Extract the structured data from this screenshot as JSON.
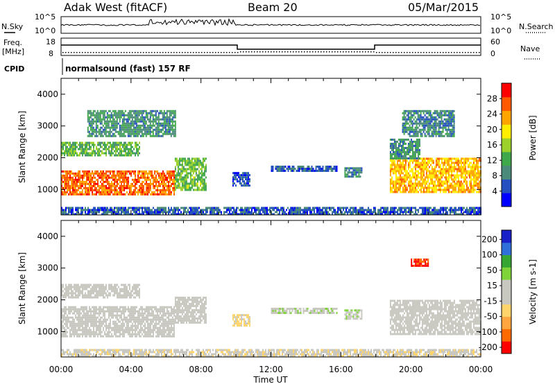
{
  "header": {
    "title": "Adak West (fitACF)",
    "beam": "Beam 20",
    "date": "05/Mar/2015"
  },
  "noise_panel": {
    "left_label": "N.Sky",
    "right_label": "N.Search",
    "left_ticks": [
      "10^5",
      "10^0"
    ],
    "right_ticks": [
      "10^5",
      "10^0"
    ]
  },
  "freq_panel": {
    "left_label_1": "Freq.",
    "left_label_2": "[MHz]",
    "right_label": "Nave",
    "left_ticks": [
      "18",
      "8"
    ],
    "right_ticks": [
      "60",
      "0"
    ]
  },
  "cpid": {
    "label": "CPID",
    "text": "normalsound (fast) 157 RF"
  },
  "colors": {
    "power": [
      "#0000ff",
      "#2550bf",
      "#4a8a7a",
      "#3fa84a",
      "#9bd12a",
      "#ffee00",
      "#ffa500",
      "#ff5a00",
      "#ff0000"
    ],
    "velocity": [
      "#ff0000",
      "#ff6a00",
      "#ffa640",
      "#ffd46a",
      "#c8c8c0",
      "#c8c8c0",
      "#7fd43a",
      "#36a632",
      "#2f6fd9",
      "#1a20c8"
    ]
  },
  "chart_data": [
    {
      "type": "heatmap",
      "name": "power",
      "ylabel": "Slant Range [km]",
      "ylim": [
        200,
        4500
      ],
      "yticks": [
        "1000",
        "2000",
        "3000",
        "4000"
      ],
      "xlim_hours": [
        0,
        24
      ],
      "colorbar": {
        "label": "Power [dB]",
        "ticks": [
          "4",
          "8",
          "12",
          "16",
          "20",
          "24",
          "28"
        ],
        "range": [
          0,
          32
        ]
      },
      "regions": [
        {
          "t": [
            0.0,
            6.5
          ],
          "r": [
            850,
            1600
          ],
          "value": 26
        },
        {
          "t": [
            6.5,
            8.3
          ],
          "r": [
            1000,
            2000
          ],
          "value": 14
        },
        {
          "t": [
            0.0,
            4.5
          ],
          "r": [
            2100,
            2500
          ],
          "value": 13
        },
        {
          "t": [
            1.5,
            6.5
          ],
          "r": [
            2700,
            3500
          ],
          "value": 10
        },
        {
          "t": [
            9.8,
            10.8
          ],
          "r": [
            1150,
            1550
          ],
          "value": 5
        },
        {
          "t": [
            12.0,
            15.8
          ],
          "r": [
            1600,
            1750
          ],
          "value": 6
        },
        {
          "t": [
            16.2,
            17.2
          ],
          "r": [
            1400,
            1700
          ],
          "value": 8
        },
        {
          "t": [
            18.8,
            24.0
          ],
          "r": [
            900,
            2000
          ],
          "value": 22
        },
        {
          "t": [
            18.8,
            20.5
          ],
          "r": [
            2000,
            2600
          ],
          "value": 10
        },
        {
          "t": [
            19.5,
            22.5
          ],
          "r": [
            2700,
            3500
          ],
          "value": 9
        },
        {
          "t": [
            0.0,
            24.0
          ],
          "r": [
            200,
            450
          ],
          "value": 6
        }
      ]
    },
    {
      "type": "heatmap",
      "name": "velocity",
      "ylabel": "Slant Range [km]",
      "ylim": [
        200,
        4500
      ],
      "yticks": [
        "1000",
        "2000",
        "3000",
        "4000"
      ],
      "xlabel": "Time UT",
      "xticks": [
        "00:00",
        "04:00",
        "08:00",
        "12:00",
        "16:00",
        "20:00",
        "00:00"
      ],
      "xlim_hours": [
        0,
        24
      ],
      "colorbar": {
        "label": "Velocity [m s-1]",
        "ticks": [
          "200",
          "100",
          "50",
          "15",
          "-15",
          "-50",
          "-100",
          "-200"
        ],
        "range": [
          -250,
          250
        ]
      },
      "regions": [
        {
          "t": [
            0.0,
            6.5
          ],
          "r": [
            850,
            1800
          ],
          "value": 0
        },
        {
          "t": [
            6.5,
            8.3
          ],
          "r": [
            1300,
            2100
          ],
          "value": 0
        },
        {
          "t": [
            0.0,
            4.5
          ],
          "r": [
            2100,
            2500
          ],
          "value": -5
        },
        {
          "t": [
            9.8,
            10.8
          ],
          "r": [
            1200,
            1550
          ],
          "value": -60
        },
        {
          "t": [
            12.0,
            15.8
          ],
          "r": [
            1600,
            1750
          ],
          "value": 40
        },
        {
          "t": [
            16.2,
            17.2
          ],
          "r": [
            1400,
            1700
          ],
          "value": 40
        },
        {
          "t": [
            18.8,
            24.0
          ],
          "r": [
            900,
            2000
          ],
          "value": 0
        },
        {
          "t": [
            20.0,
            21.0
          ],
          "r": [
            3100,
            3300
          ],
          "value": -200
        },
        {
          "t": [
            0.0,
            24.0
          ],
          "r": [
            200,
            450
          ],
          "value": -40
        }
      ]
    }
  ]
}
